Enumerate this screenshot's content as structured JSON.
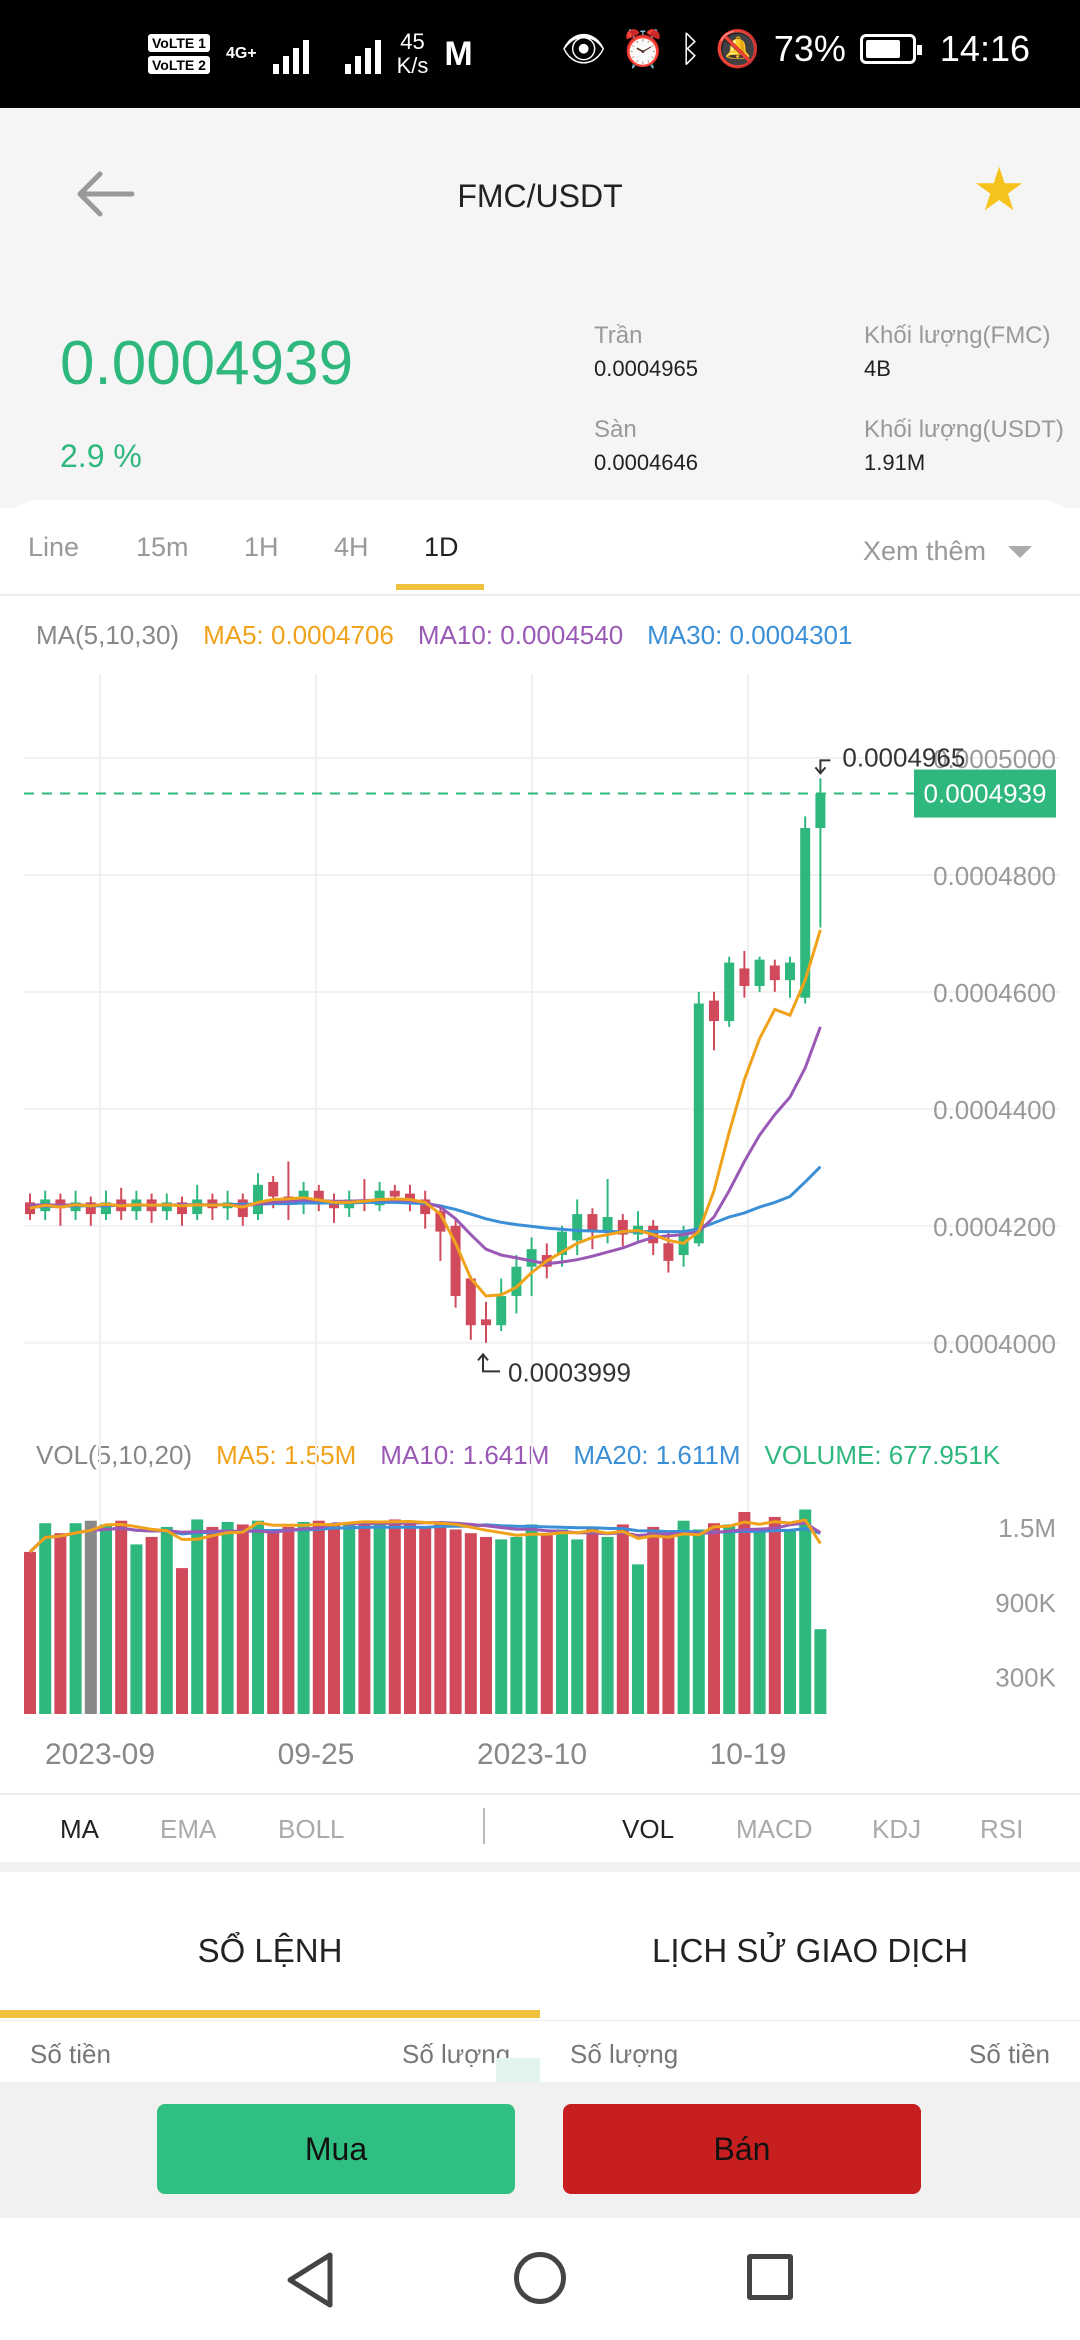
{
  "status_bar": {
    "volte1": "VoLTE 1",
    "volte2": "VoLTE 2",
    "net_type": "4G+",
    "speed_value": "45",
    "speed_unit": "K/s",
    "battery": "73%",
    "time": "14:16"
  },
  "header": {
    "title": "FMC/USDT"
  },
  "ticker": {
    "last_price": "0.0004939",
    "change_pct": "2.9 %",
    "high_label": "Trần",
    "high_value": "0.0004965",
    "low_label": "Sàn",
    "low_value": "0.0004646",
    "vol_fmc_label": "Khối lượng(FMC)",
    "vol_fmc_value": "4B",
    "vol_usdt_label": "Khối lượng(USDT)",
    "vol_usdt_value": "1.91M"
  },
  "timeframes": {
    "items": [
      "Line",
      "15m",
      "1H",
      "4H",
      "1D"
    ],
    "active": "1D",
    "more": "Xem thêm"
  },
  "indicators": {
    "ma_label": "MA(5,10,30)",
    "ma5": "MA5: 0.0004706",
    "ma10": "MA10: 0.0004540",
    "ma30": "MA30: 0.0004301",
    "vol_label": "VOL(5,10,20)",
    "vol_ma5": "MA5: 1.55M",
    "vol_ma10": "MA10: 1.641M",
    "vol_ma20": "MA20: 1.611M",
    "volume": "VOLUME: 677.951K"
  },
  "indicator_tabs": {
    "main": [
      "MA",
      "EMA",
      "BOLL"
    ],
    "sub": [
      "VOL",
      "MACD",
      "KDJ",
      "RSI"
    ],
    "main_active": "MA",
    "sub_active": "VOL"
  },
  "orderbook": {
    "tab_book": "SỔ LỆNH",
    "tab_history": "LỊCH SỬ GIAO DỊCH",
    "col_amount_left": "Số tiền",
    "col_qty_left": "Số lượng",
    "col_qty_right": "Số lượng",
    "col_amount_right": "Số tiền"
  },
  "actions": {
    "buy": "Mua",
    "sell": "Bán"
  },
  "colors": {
    "up": "#2eb87e",
    "down": "#d14a5c",
    "ma5": "#f0a21b",
    "ma10": "#9b59b6",
    "ma30": "#3a8fd6",
    "accent": "#f0c13a",
    "star": "#f6c21c"
  },
  "chart_data": {
    "type": "candlestick",
    "price_axis": {
      "ticks": [
        "0.0005000",
        "0.0004800",
        "0.0004600",
        "0.0004400",
        "0.0004200",
        "0.0004000"
      ],
      "range": [
        0.000395,
        0.0005075
      ]
    },
    "current_price": "0.0004939",
    "high_marker": "0.0004965",
    "low_marker": "0.0003999",
    "x_labels": [
      "2023-09",
      "09-25",
      "2023-10",
      "10-19"
    ],
    "volume_axis": {
      "ticks": [
        "1.5M",
        "900K",
        "300K"
      ]
    },
    "candles": [
      [
        0.000424,
        0.000422,
        0.0004255,
        0.000421
      ],
      [
        0.0004225,
        0.0004245,
        0.000426,
        0.000421
      ],
      [
        0.0004245,
        0.000423,
        0.0004255,
        0.00042
      ],
      [
        0.0004225,
        0.000424,
        0.000426,
        0.000421
      ],
      [
        0.000424,
        0.000422,
        0.000425,
        0.00042
      ],
      [
        0.000422,
        0.000424,
        0.000426,
        0.000421
      ],
      [
        0.0004245,
        0.0004225,
        0.0004265,
        0.000421
      ],
      [
        0.0004225,
        0.0004245,
        0.000426,
        0.000421
      ],
      [
        0.0004245,
        0.0004225,
        0.0004255,
        0.0004205
      ],
      [
        0.0004225,
        0.000424,
        0.0004255,
        0.000421
      ],
      [
        0.000424,
        0.000422,
        0.000425,
        0.00042
      ],
      [
        0.000422,
        0.0004245,
        0.000427,
        0.000421
      ],
      [
        0.0004245,
        0.000423,
        0.0004255,
        0.000421
      ],
      [
        0.000423,
        0.000424,
        0.000426,
        0.000421
      ],
      [
        0.0004245,
        0.0004215,
        0.0004255,
        0.00042
      ],
      [
        0.000422,
        0.000427,
        0.000429,
        0.000421
      ],
      [
        0.0004275,
        0.000425,
        0.0004285,
        0.000423
      ],
      [
        0.000425,
        0.000424,
        0.000431,
        0.000421
      ],
      [
        0.0004245,
        0.000426,
        0.0004275,
        0.000422
      ],
      [
        0.000426,
        0.000424,
        0.000427,
        0.0004225
      ],
      [
        0.000424,
        0.000423,
        0.0004255,
        0.0004205
      ],
      [
        0.000423,
        0.0004245,
        0.000426,
        0.0004215
      ],
      [
        0.0004245,
        0.000424,
        0.000428,
        0.0004225
      ],
      [
        0.0004235,
        0.000426,
        0.0004275,
        0.0004225
      ],
      [
        0.000426,
        0.000425,
        0.000427,
        0.000424
      ],
      [
        0.0004255,
        0.0004245,
        0.000427,
        0.0004225
      ],
      [
        0.0004245,
        0.000422,
        0.000426,
        0.0004195
      ],
      [
        0.0004225,
        0.000419,
        0.0004235,
        0.000414
      ],
      [
        0.00042,
        0.000408,
        0.000421,
        0.000406
      ],
      [
        0.000411,
        0.000403,
        0.0004115,
        0.0004005
      ],
      [
        0.000404,
        0.000403,
        0.000407,
        0.0004
      ],
      [
        0.000403,
        0.000408,
        0.000411,
        0.000402
      ],
      [
        0.000408,
        0.000413,
        0.000415,
        0.000405
      ],
      [
        0.000413,
        0.000416,
        0.000418,
        0.000408
      ],
      [
        0.000415,
        0.000413,
        0.000417,
        0.000411
      ],
      [
        0.000415,
        0.000419,
        0.00042,
        0.000413
      ],
      [
        0.0004175,
        0.000422,
        0.0004245,
        0.000415
      ],
      [
        0.000422,
        0.000419,
        0.000423,
        0.000416
      ],
      [
        0.000419,
        0.0004215,
        0.000428,
        0.000417
      ],
      [
        0.000421,
        0.0004185,
        0.000422,
        0.0004165
      ],
      [
        0.0004185,
        0.00042,
        0.0004225,
        0.000417
      ],
      [
        0.00042,
        0.000417,
        0.000421,
        0.000415
      ],
      [
        0.000417,
        0.000414,
        0.000419,
        0.000412
      ],
      [
        0.000415,
        0.000419,
        0.00042,
        0.000413
      ],
      [
        0.000417,
        0.000458,
        0.00046,
        0.0004165
      ],
      [
        0.0004585,
        0.000455,
        0.00046,
        0.00045
      ],
      [
        0.000455,
        0.000465,
        0.000466,
        0.000454
      ],
      [
        0.000464,
        0.000461,
        0.000467,
        0.000459
      ],
      [
        0.000461,
        0.0004655,
        0.000466,
        0.00046
      ],
      [
        0.0004645,
        0.000462,
        0.0004655,
        0.00046
      ],
      [
        0.000462,
        0.000465,
        0.000466,
        0.000459
      ],
      [
        0.000459,
        0.000488,
        0.00049,
        0.000458
      ],
      [
        0.000488,
        0.0004939,
        0.0004965,
        0.000471
      ]
    ],
    "volumes": [
      1.3,
      1.53,
      1.45,
      1.53,
      1.55,
      1.52,
      1.55,
      1.36,
      1.42,
      1.5,
      1.17,
      1.56,
      1.5,
      1.54,
      1.52,
      1.55,
      1.46,
      1.5,
      1.54,
      1.55,
      1.53,
      1.54,
      1.55,
      1.53,
      1.56,
      1.54,
      1.5,
      1.52,
      1.48,
      1.45,
      1.42,
      1.4,
      1.42,
      1.52,
      1.45,
      1.48,
      1.4,
      1.5,
      1.42,
      1.52,
      1.2,
      1.5,
      1.45,
      1.55,
      1.48,
      1.53,
      1.52,
      1.62,
      1.46,
      1.58,
      1.48,
      1.64,
      0.68
    ],
    "ma5": [
      0.000423,
      0.0004235,
      0.0004232,
      0.0004236,
      0.0004234,
      0.0004237,
      0.0004234,
      0.0004236,
      0.0004235,
      0.0004236,
      0.0004234,
      0.0004236,
      0.0004235,
      0.0004236,
      0.0004232,
      0.000424,
      0.0004245,
      0.0004246,
      0.0004248,
      0.0004244,
      0.000424,
      0.000424,
      0.0004242,
      0.0004245,
      0.0004246,
      0.0004245,
      0.000424,
      0.000422,
      0.000417,
      0.000411,
      0.000408,
      0.0004082,
      0.0004095,
      0.000412,
      0.000414,
      0.0004155,
      0.000417,
      0.000418,
      0.0004185,
      0.000419,
      0.0004192,
      0.0004185,
      0.0004175,
      0.000417,
      0.000419,
      0.000426,
      0.000436,
      0.000445,
      0.000452,
      0.000457,
      0.000456,
      0.000462,
      0.0004706
    ],
    "ma10": [
      0.0004235,
      0.0004236,
      0.0004235,
      0.0004236,
      0.0004235,
      0.0004236,
      0.0004235,
      0.0004236,
      0.0004235,
      0.0004236,
      0.0004235,
      0.0004236,
      0.0004235,
      0.0004236,
      0.0004234,
      0.0004237,
      0.000424,
      0.0004242,
      0.0004244,
      0.0004243,
      0.0004242,
      0.0004242,
      0.0004243,
      0.0004244,
      0.0004244,
      0.0004243,
      0.000424,
      0.0004232,
      0.0004212,
      0.0004185,
      0.000416,
      0.000415,
      0.0004145,
      0.000414,
      0.0004135,
      0.0004138,
      0.0004142,
      0.0004148,
      0.0004155,
      0.0004162,
      0.0004172,
      0.000418,
      0.0004183,
      0.0004185,
      0.000419,
      0.0004215,
      0.000426,
      0.000431,
      0.0004355,
      0.000439,
      0.000442,
      0.000447,
      0.000454
    ],
    "ma30": [
      0.0004232,
      0.0004233,
      0.0004233,
      0.0004234,
      0.0004234,
      0.0004234,
      0.0004235,
      0.0004235,
      0.0004235,
      0.0004235,
      0.0004236,
      0.0004236,
      0.0004236,
      0.0004236,
      0.0004237,
      0.0004237,
      0.0004238,
      0.0004238,
      0.0004239,
      0.0004239,
      0.0004239,
      0.0004239,
      0.000424,
      0.000424,
      0.000424,
      0.0004239,
      0.0004238,
      0.0004234,
      0.0004228,
      0.000422,
      0.0004212,
      0.0004206,
      0.0004202,
      0.0004199,
      0.0004196,
      0.0004194,
      0.0004192,
      0.0004191,
      0.000419,
      0.000419,
      0.000419,
      0.000419,
      0.000419,
      0.000419,
      0.0004195,
      0.0004205,
      0.0004215,
      0.0004222,
      0.0004232,
      0.000424,
      0.000425,
      0.0004275,
      0.0004301
    ]
  }
}
